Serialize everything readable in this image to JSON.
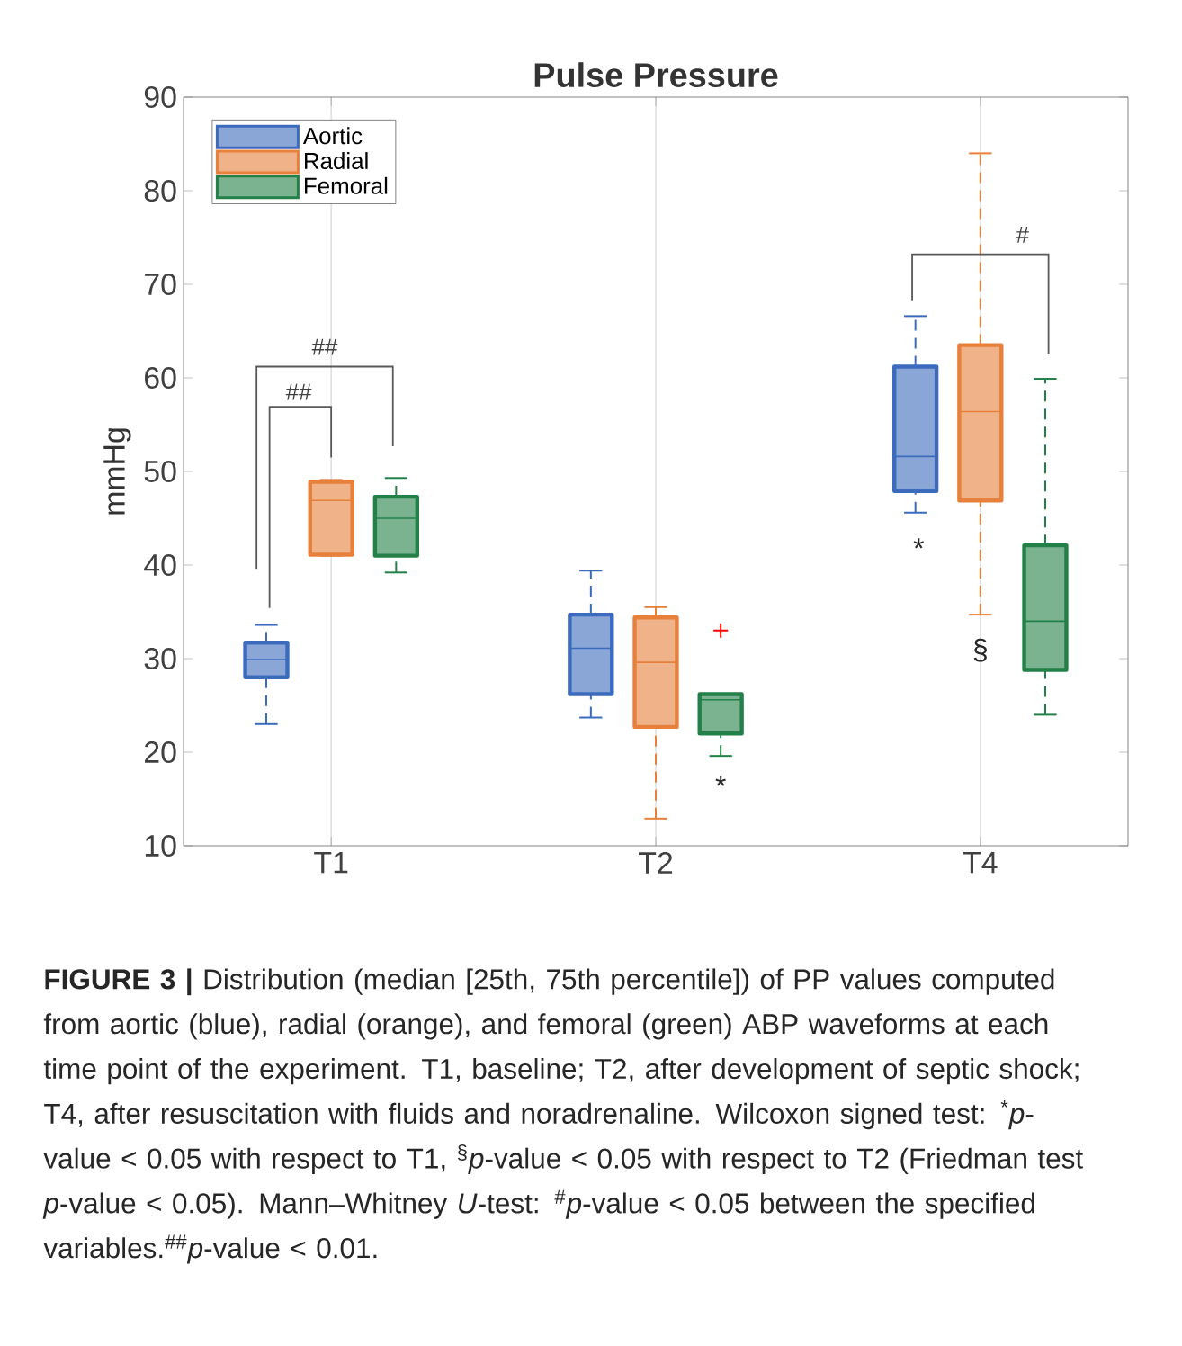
{
  "chart_data": {
    "type": "box",
    "title": "Pulse Pressure",
    "ylabel": "mmHg",
    "categories": [
      "T1",
      "T2",
      "T4"
    ],
    "ylim": [
      10,
      90
    ],
    "yticks": [
      10,
      20,
      30,
      40,
      50,
      60,
      70,
      80,
      90
    ],
    "grid": "x",
    "legend": "top left",
    "line_style": "dashed",
    "series": [
      {
        "name": "Aortic",
        "color": "#3c6bbd",
        "boxes": [
          {
            "low": 23.0,
            "q1": 28.0,
            "median": 29.9,
            "q3": 31.7,
            "high": 33.6
          },
          {
            "low": 23.7,
            "q1": 26.2,
            "median": 31.1,
            "q3": 34.7,
            "high": 39.4
          },
          {
            "low": 45.6,
            "q1": 47.9,
            "median": 51.6,
            "q3": 61.2,
            "high": 66.6
          }
        ]
      },
      {
        "name": "Radial",
        "color": "#e6803a",
        "boxes": [
          {
            "low": 41.0,
            "q1": 41.1,
            "median": 46.9,
            "q3": 48.9,
            "high": 49.1
          },
          {
            "low": 12.9,
            "q1": 22.7,
            "median": 29.6,
            "q3": 34.4,
            "high": 35.5
          },
          {
            "low": 34.7,
            "q1": 46.9,
            "median": 56.4,
            "q3": 63.5,
            "high": 84.0
          }
        ]
      },
      {
        "name": "Femoral",
        "color": "#238048",
        "boxes": [
          {
            "low": 39.2,
            "q1": 41.0,
            "median": 45.0,
            "q3": 47.3,
            "high": 49.3
          },
          {
            "low": 19.6,
            "q1": 22.0,
            "median": 25.6,
            "q3": 26.2,
            "high": 26.2,
            "outliers": [
              33.0
            ]
          },
          {
            "low": 24.0,
            "q1": 28.8,
            "median": 34.0,
            "q3": 42.1,
            "high": 59.9
          }
        ]
      }
    ],
    "annotations": [
      "##",
      "##",
      "#",
      "*",
      "*",
      "§",
      "**FIGURE 3 |** Distribution (median [25th, 75th percentile]) of PP values computed from aortic (blue), radial (orange), and femoral (green) ABP waveforms at each time point of the experiment. T1, baseline; T2, after development of septic shock; T4, after resuscitation with fluids and noradrenaline. Wilcoxon signed test: $^{*}$*p*-value < 0.05 with respect to T1, $^{§}$*p*-value < 0.05 with respect to T2 (Friedman test *p*-value < 0.05). Mann–Whitney *U*-test: $^{#}$*p*-value < 0.05 between the specified variables.$^{##}$*p*-value < 0.01."
    ]
  }
}
